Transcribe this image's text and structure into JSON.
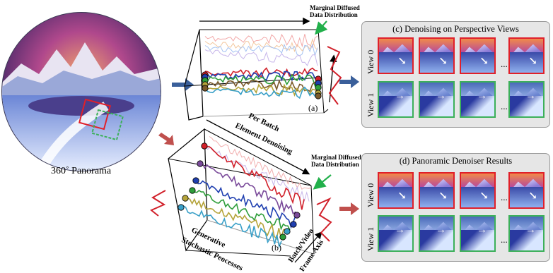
{
  "panorama": {
    "label": "360˚ Panorama"
  },
  "plot_a": {
    "tag": "(a)",
    "annotation": [
      "Marginal Diffused",
      "Data Distribution"
    ]
  },
  "plot_b": {
    "tag": "(b)",
    "annotation": [
      "Marginal Diffused",
      "Data Distribution"
    ],
    "top_axis": [
      "Per Batch",
      "Element Denoising"
    ],
    "bottom_axis": [
      "Generative",
      "Stochastic Peocesses"
    ],
    "right_axis": [
      "Batch/Video",
      "Frame Axis"
    ]
  },
  "panel_c": {
    "title": "(c) Denoising on Perspective Views",
    "row_labels": [
      "View 0",
      "View 1"
    ],
    "ellipsis": "..."
  },
  "panel_d": {
    "title": "(d) Panoramic Denoiser Results",
    "row_labels": [
      "View 0",
      "View 1"
    ],
    "ellipsis": "..."
  },
  "colors": {
    "view0_border": "#e0202a",
    "view1_border": "#3cb05a",
    "arrow_blue": "#3a5f9a",
    "arrow_red": "#c0504d"
  }
}
